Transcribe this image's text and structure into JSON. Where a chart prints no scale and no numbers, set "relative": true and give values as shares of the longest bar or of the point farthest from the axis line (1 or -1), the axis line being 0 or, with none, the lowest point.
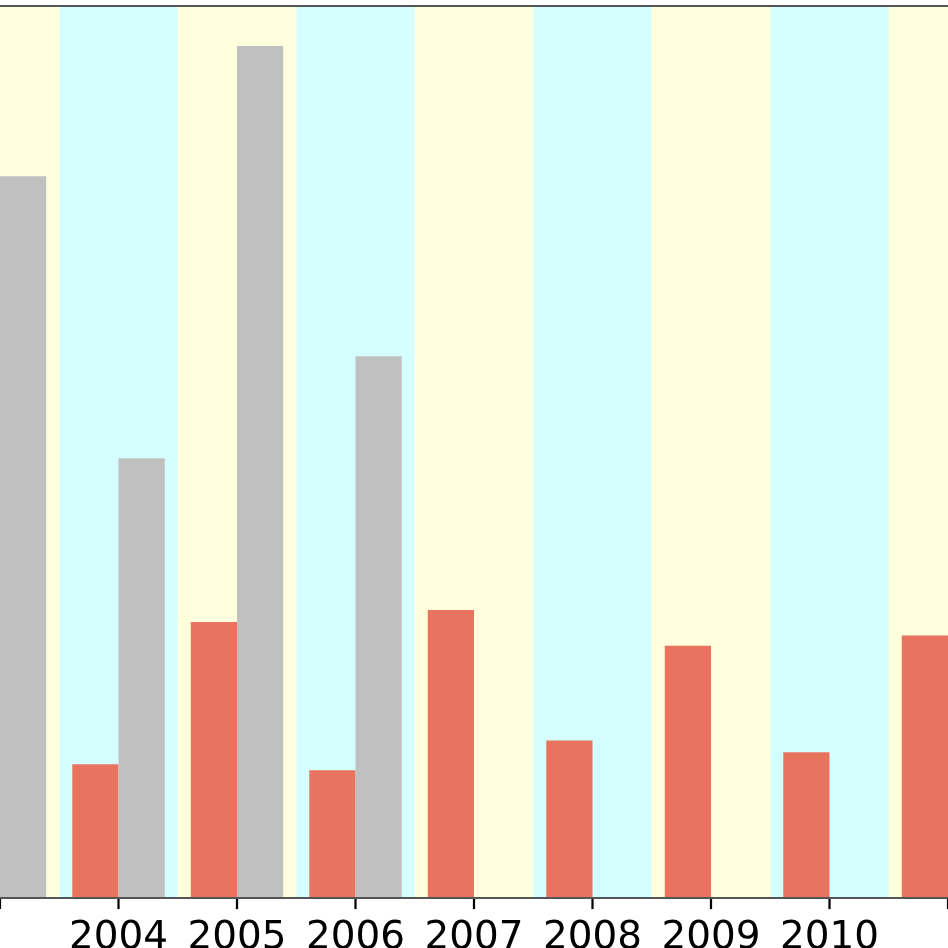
{
  "chart_data": {
    "type": "bar",
    "relative": true,
    "categories": [
      null,
      "2004",
      "2005",
      "2006",
      "2007",
      "2008",
      "2009",
      "2010",
      null
    ],
    "series": [
      {
        "color": "#e8735f",
        "values": [
          null,
          0.157,
          0.324,
          0.15,
          0.338,
          0.185,
          0.296,
          0.171,
          0.308
        ]
      },
      {
        "color": "#c0c0c0",
        "values": [
          0.847,
          0.516,
          1,
          0.636,
          null,
          null,
          null,
          null,
          null
        ]
      }
    ],
    "bands": [
      {
        "axis": "x",
        "from": "2004",
        "to": "2004",
        "color": "#d5ffff"
      },
      {
        "axis": "x",
        "from": "2005",
        "to": "2005",
        "color": "#ffffdd"
      },
      {
        "axis": "x",
        "from": "2006",
        "to": "2006",
        "color": "#d5ffff"
      },
      {
        "axis": "x",
        "from": "2007",
        "to": "2007",
        "color": "#ffffdd"
      },
      {
        "axis": "x",
        "from": "2008",
        "to": "2008",
        "color": "#d5ffff"
      },
      {
        "axis": "x",
        "from": "2009",
        "to": "2009",
        "color": "#ffffdd"
      },
      {
        "axis": "x",
        "from": "2010",
        "to": "2010",
        "color": "#d5ffff"
      }
    ]
  }
}
